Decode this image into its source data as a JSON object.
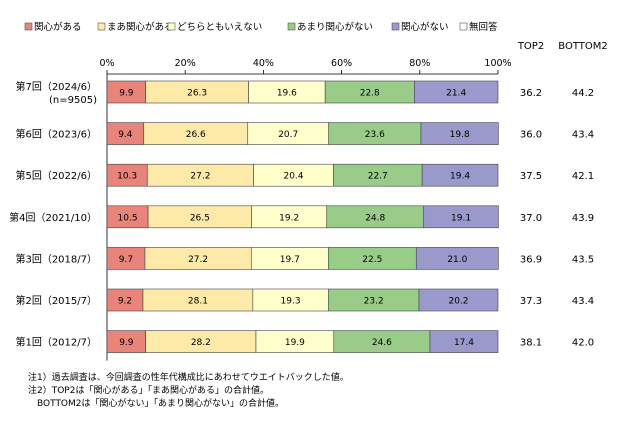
{
  "chart_data": {
    "type": "bar",
    "orientation": "horizontal",
    "stacked": true,
    "percent_stacked": true,
    "legend": {
      "placement": "top",
      "entries": [
        "関心がある",
        "まあ関心がある",
        "どちらともいえない",
        "あまり関心がない",
        "関心がない",
        "無回答"
      ]
    },
    "colors": [
      "#e8847a",
      "#fde9a8",
      "#ffffcc",
      "#99cc88",
      "#9999cc",
      "#ffffff"
    ],
    "categories": [
      "第7回（2024/6）\n(n=9505)",
      "第6回（2023/6）",
      "第5回（2022/6）",
      "第4回（2021/10）",
      "第3回（2018/7）",
      "第2回（2015/7）",
      "第1回（2012/7）"
    ],
    "series": [
      {
        "name": "関心がある",
        "values": [
          9.9,
          9.4,
          10.3,
          10.5,
          9.7,
          9.2,
          9.9
        ]
      },
      {
        "name": "まあ関心がある",
        "values": [
          26.3,
          26.6,
          27.2,
          26.5,
          27.2,
          28.1,
          28.2
        ]
      },
      {
        "name": "どちらともいえない",
        "values": [
          19.6,
          20.7,
          20.4,
          19.2,
          19.7,
          19.3,
          19.9
        ]
      },
      {
        "name": "あまり関心がない",
        "values": [
          22.8,
          23.6,
          22.7,
          24.8,
          22.5,
          23.2,
          24.6
        ]
      },
      {
        "name": "関心がない",
        "values": [
          21.4,
          19.8,
          19.4,
          19.1,
          21.0,
          20.2,
          17.4
        ]
      },
      {
        "name": "無回答",
        "values": [
          0,
          0,
          0,
          0,
          0,
          0,
          0
        ]
      }
    ],
    "xlim": [
      0,
      100
    ],
    "x_ticks": [
      "0%",
      "20%",
      "40%",
      "60%",
      "80%",
      "100%"
    ],
    "grid": false,
    "summary_columns": {
      "headers": [
        "TOP2",
        "BOTTOM2"
      ],
      "top2": [
        "36.2",
        "36.0",
        "37.5",
        "37.0",
        "36.9",
        "37.3",
        "38.1"
      ],
      "bottom2": [
        "44.2",
        "43.4",
        "42.1",
        "43.9",
        "43.5",
        "43.4",
        "42.0"
      ]
    }
  },
  "notes": [
    "注1）過去調査は、今回調査の性年代構成比にあわせてウエイトバックした値。",
    "注2）TOP2は「関心がある」「まあ関心がある」の合計値。",
    "　BOTTOM2は「関心がない」「あまり関心がない」の合計値。"
  ]
}
